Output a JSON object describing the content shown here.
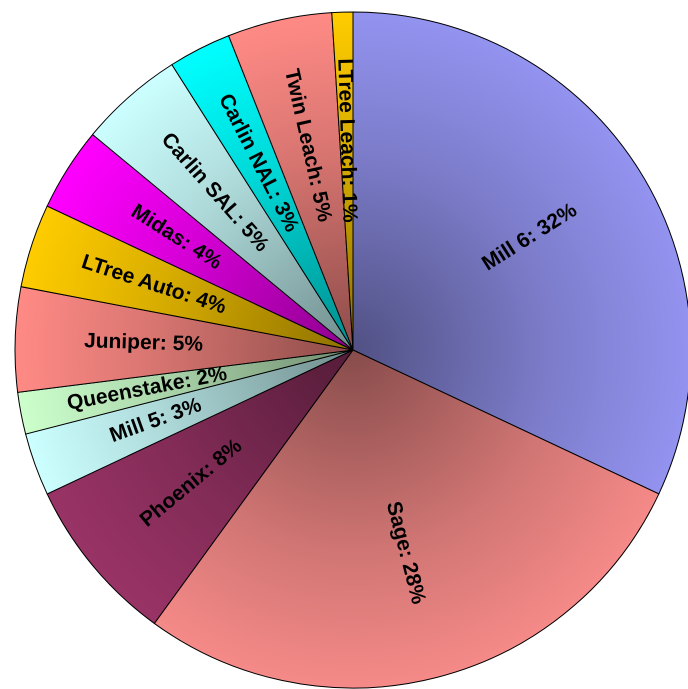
{
  "chart_data": {
    "type": "pie",
    "values": [
      32,
      28,
      8,
      3,
      2,
      5,
      4,
      4,
      5,
      3,
      5,
      1
    ],
    "value_labels": [
      "Mill 6: 32%",
      "Sage: 28%",
      "Phoenix: 8%",
      "Mill 5: 3%",
      "Queenstake: 2%",
      "Juniper: 5%",
      "LTree Auto: 4%",
      "Midas: 4%",
      "Carlin SAL: 5%",
      "Carlin NAL: 3%",
      "Twin Leach: 5%",
      "LTree Leach: 1%"
    ],
    "colors": [
      "#9393f0",
      "#f58a88",
      "#993366",
      "#ccffff",
      "#ccffcc",
      "#ff8a85",
      "#ffcc00",
      "#ff00ff",
      "#ccffff",
      "#00ffff",
      "#ff8a85",
      "#ffcc00"
    ]
  }
}
